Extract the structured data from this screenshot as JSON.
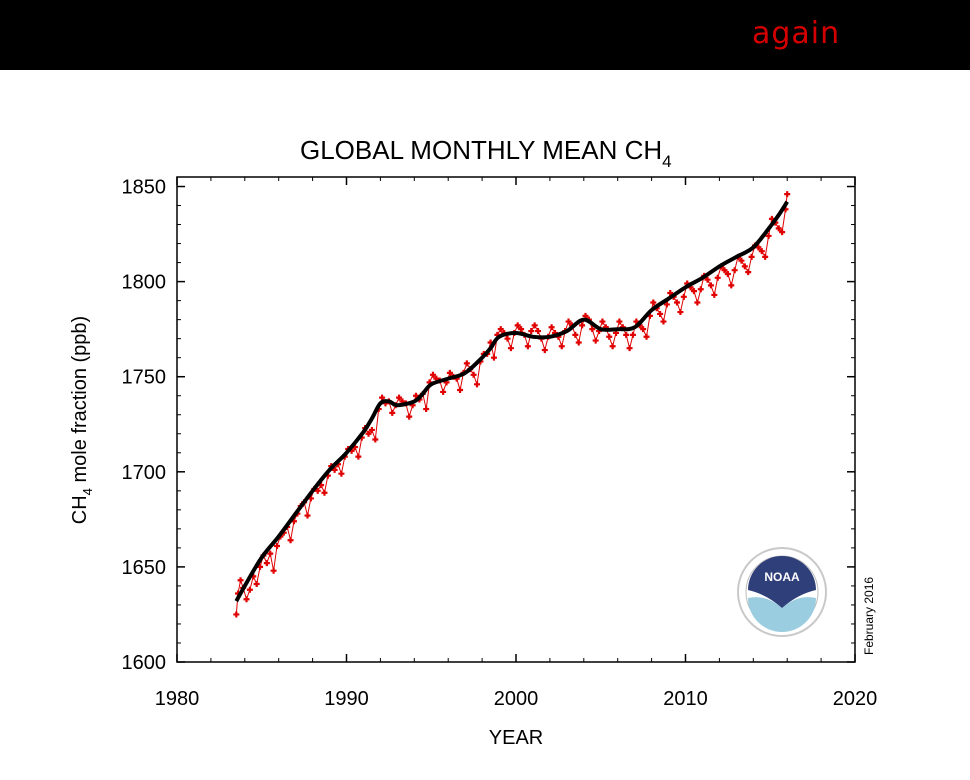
{
  "banner": {
    "text": "again"
  },
  "chart_data": {
    "type": "line",
    "title": "GLOBAL MONTHLY MEAN CH",
    "title_subscript": "4",
    "xlabel": "YEAR",
    "ylabel_prefix": "CH",
    "ylabel_subscript": "4",
    "ylabel_suffix": " mole fraction (ppb)",
    "xlim": [
      1980,
      2020
    ],
    "ylim": [
      1600,
      1855
    ],
    "xticks": [
      1980,
      1990,
      2000,
      2010,
      2020
    ],
    "yticks": [
      1600,
      1650,
      1700,
      1750,
      1800,
      1850
    ],
    "date_note": "February 2016",
    "logo": "NOAA",
    "series_colors": {
      "monthly": "#e00000",
      "trend": "#000000"
    },
    "series": [
      {
        "name": "",
        "style": "monthly-points",
        "points": [
          [
            1983.5,
            1625
          ],
          [
            1983.6,
            1636
          ],
          [
            1983.75,
            1643
          ],
          [
            1983.9,
            1639
          ],
          [
            1984.1,
            1633
          ],
          [
            1984.3,
            1638
          ],
          [
            1984.5,
            1645
          ],
          [
            1984.7,
            1641
          ],
          [
            1984.9,
            1650
          ],
          [
            1985.1,
            1656
          ],
          [
            1985.3,
            1652
          ],
          [
            1985.5,
            1657
          ],
          [
            1985.7,
            1648
          ],
          [
            1985.9,
            1661
          ],
          [
            1986.1,
            1666
          ],
          [
            1986.3,
            1668
          ],
          [
            1986.5,
            1671
          ],
          [
            1986.7,
            1664
          ],
          [
            1986.9,
            1674
          ],
          [
            1987.1,
            1678
          ],
          [
            1987.3,
            1682
          ],
          [
            1987.5,
            1684
          ],
          [
            1987.7,
            1677
          ],
          [
            1987.9,
            1686
          ],
          [
            1988.1,
            1691
          ],
          [
            1988.3,
            1690
          ],
          [
            1988.5,
            1693
          ],
          [
            1988.7,
            1689
          ],
          [
            1988.9,
            1698
          ],
          [
            1989.1,
            1703
          ],
          [
            1989.3,
            1701
          ],
          [
            1989.5,
            1704
          ],
          [
            1989.7,
            1699
          ],
          [
            1989.9,
            1708
          ],
          [
            1990.1,
            1712
          ],
          [
            1990.3,
            1711
          ],
          [
            1990.5,
            1713
          ],
          [
            1990.7,
            1708
          ],
          [
            1990.9,
            1718
          ],
          [
            1991.1,
            1723
          ],
          [
            1991.3,
            1720
          ],
          [
            1991.5,
            1722
          ],
          [
            1991.7,
            1717
          ],
          [
            1991.9,
            1733
          ],
          [
            1992.1,
            1739
          ],
          [
            1992.3,
            1736
          ],
          [
            1992.5,
            1737
          ],
          [
            1992.7,
            1731
          ],
          [
            1992.9,
            1735
          ],
          [
            1993.1,
            1739
          ],
          [
            1993.3,
            1737
          ],
          [
            1993.5,
            1736
          ],
          [
            1993.7,
            1729
          ],
          [
            1993.9,
            1735
          ],
          [
            1994.1,
            1740
          ],
          [
            1994.3,
            1738
          ],
          [
            1994.5,
            1741
          ],
          [
            1994.7,
            1733
          ],
          [
            1994.9,
            1747
          ],
          [
            1995.1,
            1751
          ],
          [
            1995.3,
            1749
          ],
          [
            1995.5,
            1748
          ],
          [
            1995.7,
            1742
          ],
          [
            1995.9,
            1747
          ],
          [
            1996.1,
            1752
          ],
          [
            1996.3,
            1750
          ],
          [
            1996.5,
            1749
          ],
          [
            1996.7,
            1743
          ],
          [
            1996.9,
            1752
          ],
          [
            1997.1,
            1757
          ],
          [
            1997.3,
            1754
          ],
          [
            1997.5,
            1751
          ],
          [
            1997.7,
            1746
          ],
          [
            1997.9,
            1758
          ],
          [
            1998.1,
            1762
          ],
          [
            1998.3,
            1762
          ],
          [
            1998.5,
            1768
          ],
          [
            1998.7,
            1760
          ],
          [
            1998.9,
            1772
          ],
          [
            1999.1,
            1775
          ],
          [
            1999.3,
            1773
          ],
          [
            1999.5,
            1770
          ],
          [
            1999.7,
            1765
          ],
          [
            1999.9,
            1773
          ],
          [
            2000.1,
            1777
          ],
          [
            2000.3,
            1775
          ],
          [
            2000.5,
            1772
          ],
          [
            2000.7,
            1766
          ],
          [
            2000.9,
            1774
          ],
          [
            2001.1,
            1777
          ],
          [
            2001.3,
            1774
          ],
          [
            2001.5,
            1770
          ],
          [
            2001.7,
            1764
          ],
          [
            2001.9,
            1771
          ],
          [
            2002.1,
            1776
          ],
          [
            2002.3,
            1773
          ],
          [
            2002.5,
            1771
          ],
          [
            2002.7,
            1766
          ],
          [
            2002.9,
            1774
          ],
          [
            2003.1,
            1779
          ],
          [
            2003.3,
            1777
          ],
          [
            2003.5,
            1772
          ],
          [
            2003.7,
            1768
          ],
          [
            2003.9,
            1777
          ],
          [
            2004.1,
            1782
          ],
          [
            2004.3,
            1780
          ],
          [
            2004.5,
            1775
          ],
          [
            2004.7,
            1769
          ],
          [
            2004.9,
            1774
          ],
          [
            2005.1,
            1779
          ],
          [
            2005.3,
            1776
          ],
          [
            2005.5,
            1771
          ],
          [
            2005.7,
            1766
          ],
          [
            2005.9,
            1773
          ],
          [
            2006.1,
            1779
          ],
          [
            2006.3,
            1776
          ],
          [
            2006.5,
            1772
          ],
          [
            2006.7,
            1765
          ],
          [
            2006.9,
            1772
          ],
          [
            2007.1,
            1779
          ],
          [
            2007.3,
            1777
          ],
          [
            2007.5,
            1775
          ],
          [
            2007.7,
            1771
          ],
          [
            2007.9,
            1782
          ],
          [
            2008.1,
            1789
          ],
          [
            2008.3,
            1786
          ],
          [
            2008.5,
            1783
          ],
          [
            2008.7,
            1779
          ],
          [
            2008.9,
            1788
          ],
          [
            2009.1,
            1794
          ],
          [
            2009.3,
            1792
          ],
          [
            2009.5,
            1789
          ],
          [
            2009.7,
            1784
          ],
          [
            2009.9,
            1792
          ],
          [
            2010.1,
            1799
          ],
          [
            2010.3,
            1797
          ],
          [
            2010.5,
            1795
          ],
          [
            2010.7,
            1789
          ],
          [
            2010.9,
            1796
          ],
          [
            2011.1,
            1803
          ],
          [
            2011.3,
            1801
          ],
          [
            2011.5,
            1798
          ],
          [
            2011.7,
            1793
          ],
          [
            2011.9,
            1802
          ],
          [
            2012.1,
            1808
          ],
          [
            2012.3,
            1806
          ],
          [
            2012.5,
            1804
          ],
          [
            2012.7,
            1798
          ],
          [
            2012.9,
            1806
          ],
          [
            2013.1,
            1813
          ],
          [
            2013.3,
            1811
          ],
          [
            2013.5,
            1808
          ],
          [
            2013.7,
            1805
          ],
          [
            2013.9,
            1813
          ],
          [
            2014.1,
            1819
          ],
          [
            2014.3,
            1818
          ],
          [
            2014.5,
            1816
          ],
          [
            2014.7,
            1813
          ],
          [
            2014.9,
            1824
          ],
          [
            2015.1,
            1833
          ],
          [
            2015.3,
            1831
          ],
          [
            2015.5,
            1828
          ],
          [
            2015.7,
            1826
          ],
          [
            2015.9,
            1838
          ],
          [
            2016.0,
            1846
          ]
        ]
      },
      {
        "name": "",
        "style": "trend-line",
        "points": [
          [
            1983.5,
            1632
          ],
          [
            1984,
            1640
          ],
          [
            1985,
            1655
          ],
          [
            1986,
            1666
          ],
          [
            1987,
            1678
          ],
          [
            1988,
            1690
          ],
          [
            1989,
            1701
          ],
          [
            1990,
            1710
          ],
          [
            1991,
            1721
          ],
          [
            1991.5,
            1728
          ],
          [
            1992,
            1736
          ],
          [
            1992.5,
            1737
          ],
          [
            1993,
            1735
          ],
          [
            1994,
            1737
          ],
          [
            1994.5,
            1741
          ],
          [
            1995,
            1746
          ],
          [
            1996,
            1749
          ],
          [
            1997,
            1752
          ],
          [
            1998,
            1760
          ],
          [
            1998.5,
            1765
          ],
          [
            1999,
            1771
          ],
          [
            2000,
            1773
          ],
          [
            2001,
            1771
          ],
          [
            2002,
            1771
          ],
          [
            2003,
            1774
          ],
          [
            2004,
            1780
          ],
          [
            2005,
            1775
          ],
          [
            2006,
            1775
          ],
          [
            2007,
            1776
          ],
          [
            2008,
            1785
          ],
          [
            2009,
            1791
          ],
          [
            2010,
            1797
          ],
          [
            2011,
            1802
          ],
          [
            2012,
            1808
          ],
          [
            2013,
            1813
          ],
          [
            2014,
            1818
          ],
          [
            2015,
            1829
          ],
          [
            2015.5,
            1835
          ],
          [
            2016,
            1842
          ]
        ]
      }
    ]
  }
}
